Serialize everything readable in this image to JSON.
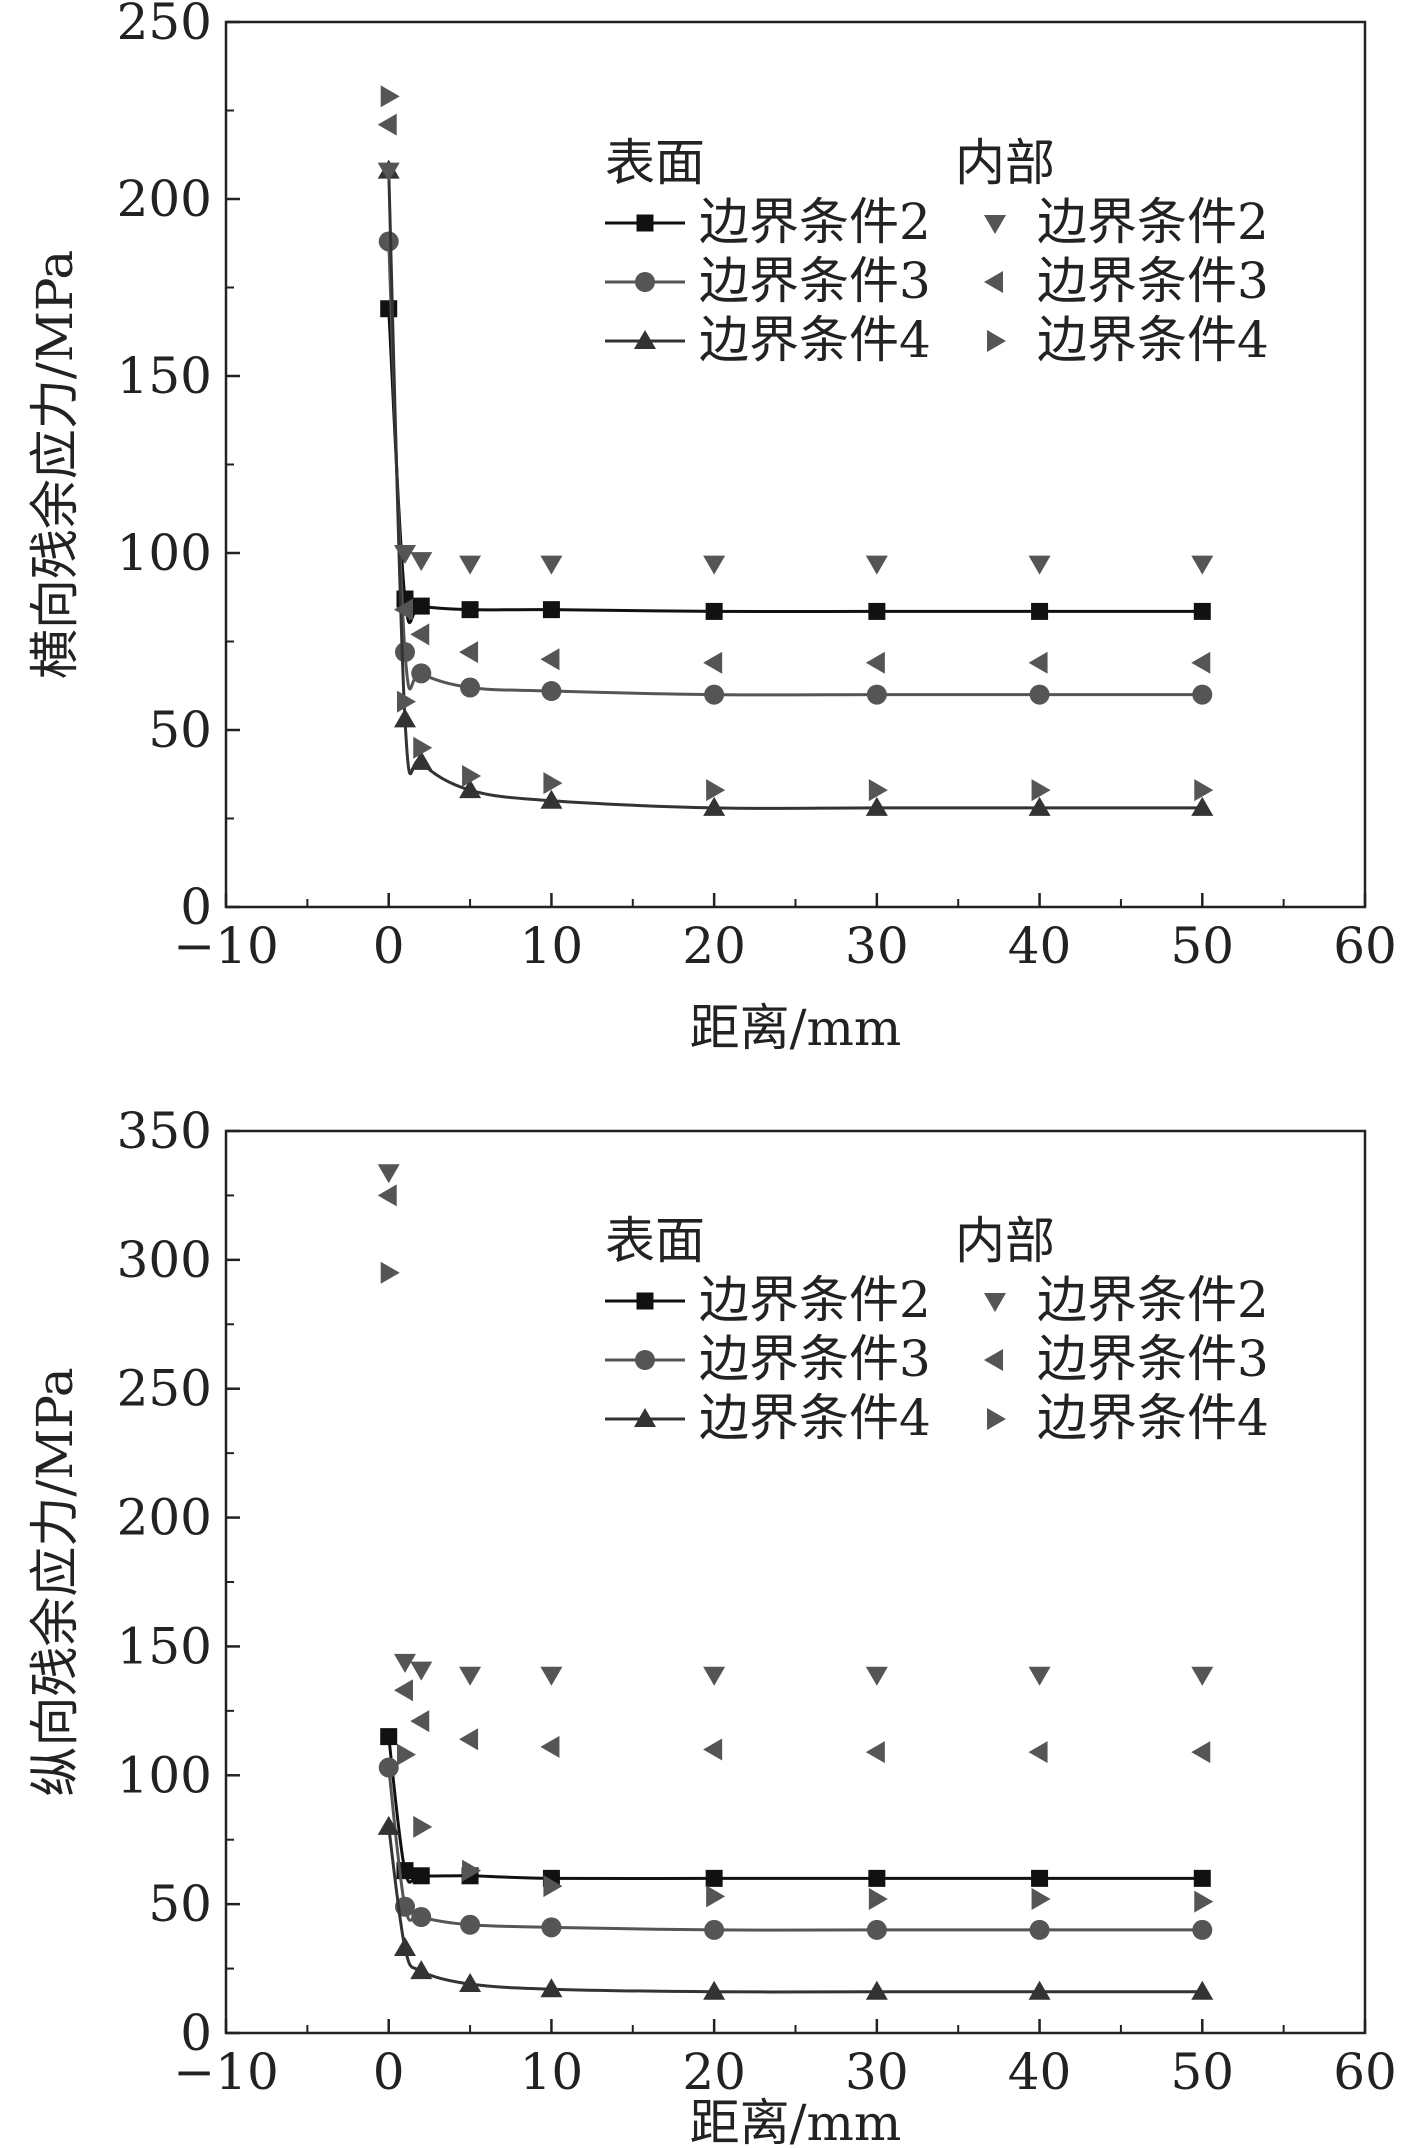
{
  "chart_data": [
    {
      "type": "line",
      "xlabel": "距离/mm",
      "ylabel": "横向残余应力/MPa",
      "xlim": [
        -10,
        60
      ],
      "ylim": [
        0,
        250
      ],
      "xticks": [
        "−10",
        "0",
        "10",
        "20",
        "30",
        "40",
        "50",
        "60"
      ],
      "yticks": [
        "0",
        "50",
        "100",
        "150",
        "200",
        "250"
      ],
      "legend": {
        "surface_header": "表面",
        "internal_header": "内部",
        "entries": [
          "边界条件2",
          "边界条件3",
          "边界条件4",
          "边界条件2",
          "边界条件3",
          "边界条件4"
        ]
      },
      "series": [
        {
          "name": "表面 边界条件2",
          "group": "surface",
          "marker": "square",
          "color": "#111111",
          "x": [
            0,
            1,
            2,
            5,
            10,
            20,
            30,
            40,
            50
          ],
          "y": [
            169,
            87,
            85,
            84,
            84,
            83.5,
            83.5,
            83.5,
            83.5
          ]
        },
        {
          "name": "表面 边界条件3",
          "group": "surface",
          "marker": "circle",
          "color": "#555555",
          "x": [
            0,
            1,
            2,
            5,
            10,
            20,
            30,
            40,
            50
          ],
          "y": [
            188,
            72,
            66,
            62,
            61,
            60,
            60,
            60,
            60
          ]
        },
        {
          "name": "表面 边界条件4",
          "group": "surface",
          "marker": "triangle-up",
          "color": "#333333",
          "x": [
            0,
            1,
            2,
            5,
            10,
            20,
            30,
            40,
            50
          ],
          "y": [
            208,
            53,
            41,
            33,
            30,
            28,
            28,
            28,
            28
          ]
        },
        {
          "name": "内部 边界条件2",
          "group": "internal",
          "marker": "triangle-down",
          "color": "#555555",
          "x": [
            0,
            1,
            2,
            5,
            10,
            20,
            30,
            40,
            50
          ],
          "y": [
            208,
            100,
            98,
            97,
            97,
            97,
            97,
            97,
            97
          ]
        },
        {
          "name": "内部 边界条件3",
          "group": "internal",
          "marker": "triangle-left",
          "color": "#555555",
          "x": [
            0,
            1,
            2,
            5,
            10,
            20,
            30,
            40,
            50
          ],
          "y": [
            221,
            84,
            77,
            72,
            70,
            69,
            69,
            69,
            69
          ]
        },
        {
          "name": "内部 边界条件4",
          "group": "internal",
          "marker": "triangle-right",
          "color": "#555555",
          "x": [
            0,
            1,
            2,
            5,
            10,
            20,
            30,
            40,
            50
          ],
          "y": [
            229,
            58,
            45,
            37,
            35,
            33,
            33,
            33,
            33
          ]
        }
      ]
    },
    {
      "type": "line",
      "xlabel": "距离/mm",
      "ylabel": "纵向残余应力/MPa",
      "xlim": [
        -10,
        60
      ],
      "ylim": [
        0,
        350
      ],
      "xticks": [
        "−10",
        "0",
        "10",
        "20",
        "30",
        "40",
        "50",
        "60"
      ],
      "yticks": [
        "0",
        "50",
        "100",
        "150",
        "200",
        "250",
        "300",
        "350"
      ],
      "legend": {
        "surface_header": "表面",
        "internal_header": "内部",
        "entries": [
          "边界条件2",
          "边界条件3",
          "边界条件4",
          "边界条件2",
          "边界条件3",
          "边界条件4"
        ]
      },
      "series": [
        {
          "name": "表面 边界条件2",
          "group": "surface",
          "marker": "square",
          "color": "#111111",
          "x": [
            0,
            1,
            2,
            5,
            10,
            20,
            30,
            40,
            50
          ],
          "y": [
            115,
            63,
            61,
            61,
            60,
            60,
            60,
            60,
            60
          ]
        },
        {
          "name": "表面 边界条件3",
          "group": "surface",
          "marker": "circle",
          "color": "#555555",
          "x": [
            0,
            1,
            2,
            5,
            10,
            20,
            30,
            40,
            50
          ],
          "y": [
            103,
            49,
            45,
            42,
            41,
            40,
            40,
            40,
            40
          ]
        },
        {
          "name": "表面 边界条件4",
          "group": "surface",
          "marker": "triangle-up",
          "color": "#333333",
          "x": [
            0,
            1,
            2,
            5,
            10,
            20,
            30,
            40,
            50
          ],
          "y": [
            80,
            33,
            24,
            19,
            17,
            16,
            16,
            16,
            16
          ]
        },
        {
          "name": "内部 边界条件2",
          "group": "internal",
          "marker": "triangle-down",
          "color": "#555555",
          "x": [
            0,
            1,
            2,
            5,
            10,
            20,
            30,
            40,
            50
          ],
          "y": [
            334,
            144,
            141,
            139,
            139,
            139,
            139,
            139,
            139
          ]
        },
        {
          "name": "内部 边界条件3",
          "group": "internal",
          "marker": "triangle-left",
          "color": "#555555",
          "x": [
            0,
            1,
            2,
            5,
            10,
            20,
            30,
            40,
            50
          ],
          "y": [
            325,
            133,
            121,
            114,
            111,
            110,
            109,
            109,
            109
          ]
        },
        {
          "name": "内部 边界条件4",
          "group": "internal",
          "marker": "triangle-right",
          "color": "#555555",
          "x": [
            0,
            1,
            2,
            5,
            10,
            20,
            30,
            40,
            50
          ],
          "y": [
            295,
            108,
            80,
            63,
            57,
            53,
            52,
            52,
            51
          ]
        }
      ]
    }
  ]
}
